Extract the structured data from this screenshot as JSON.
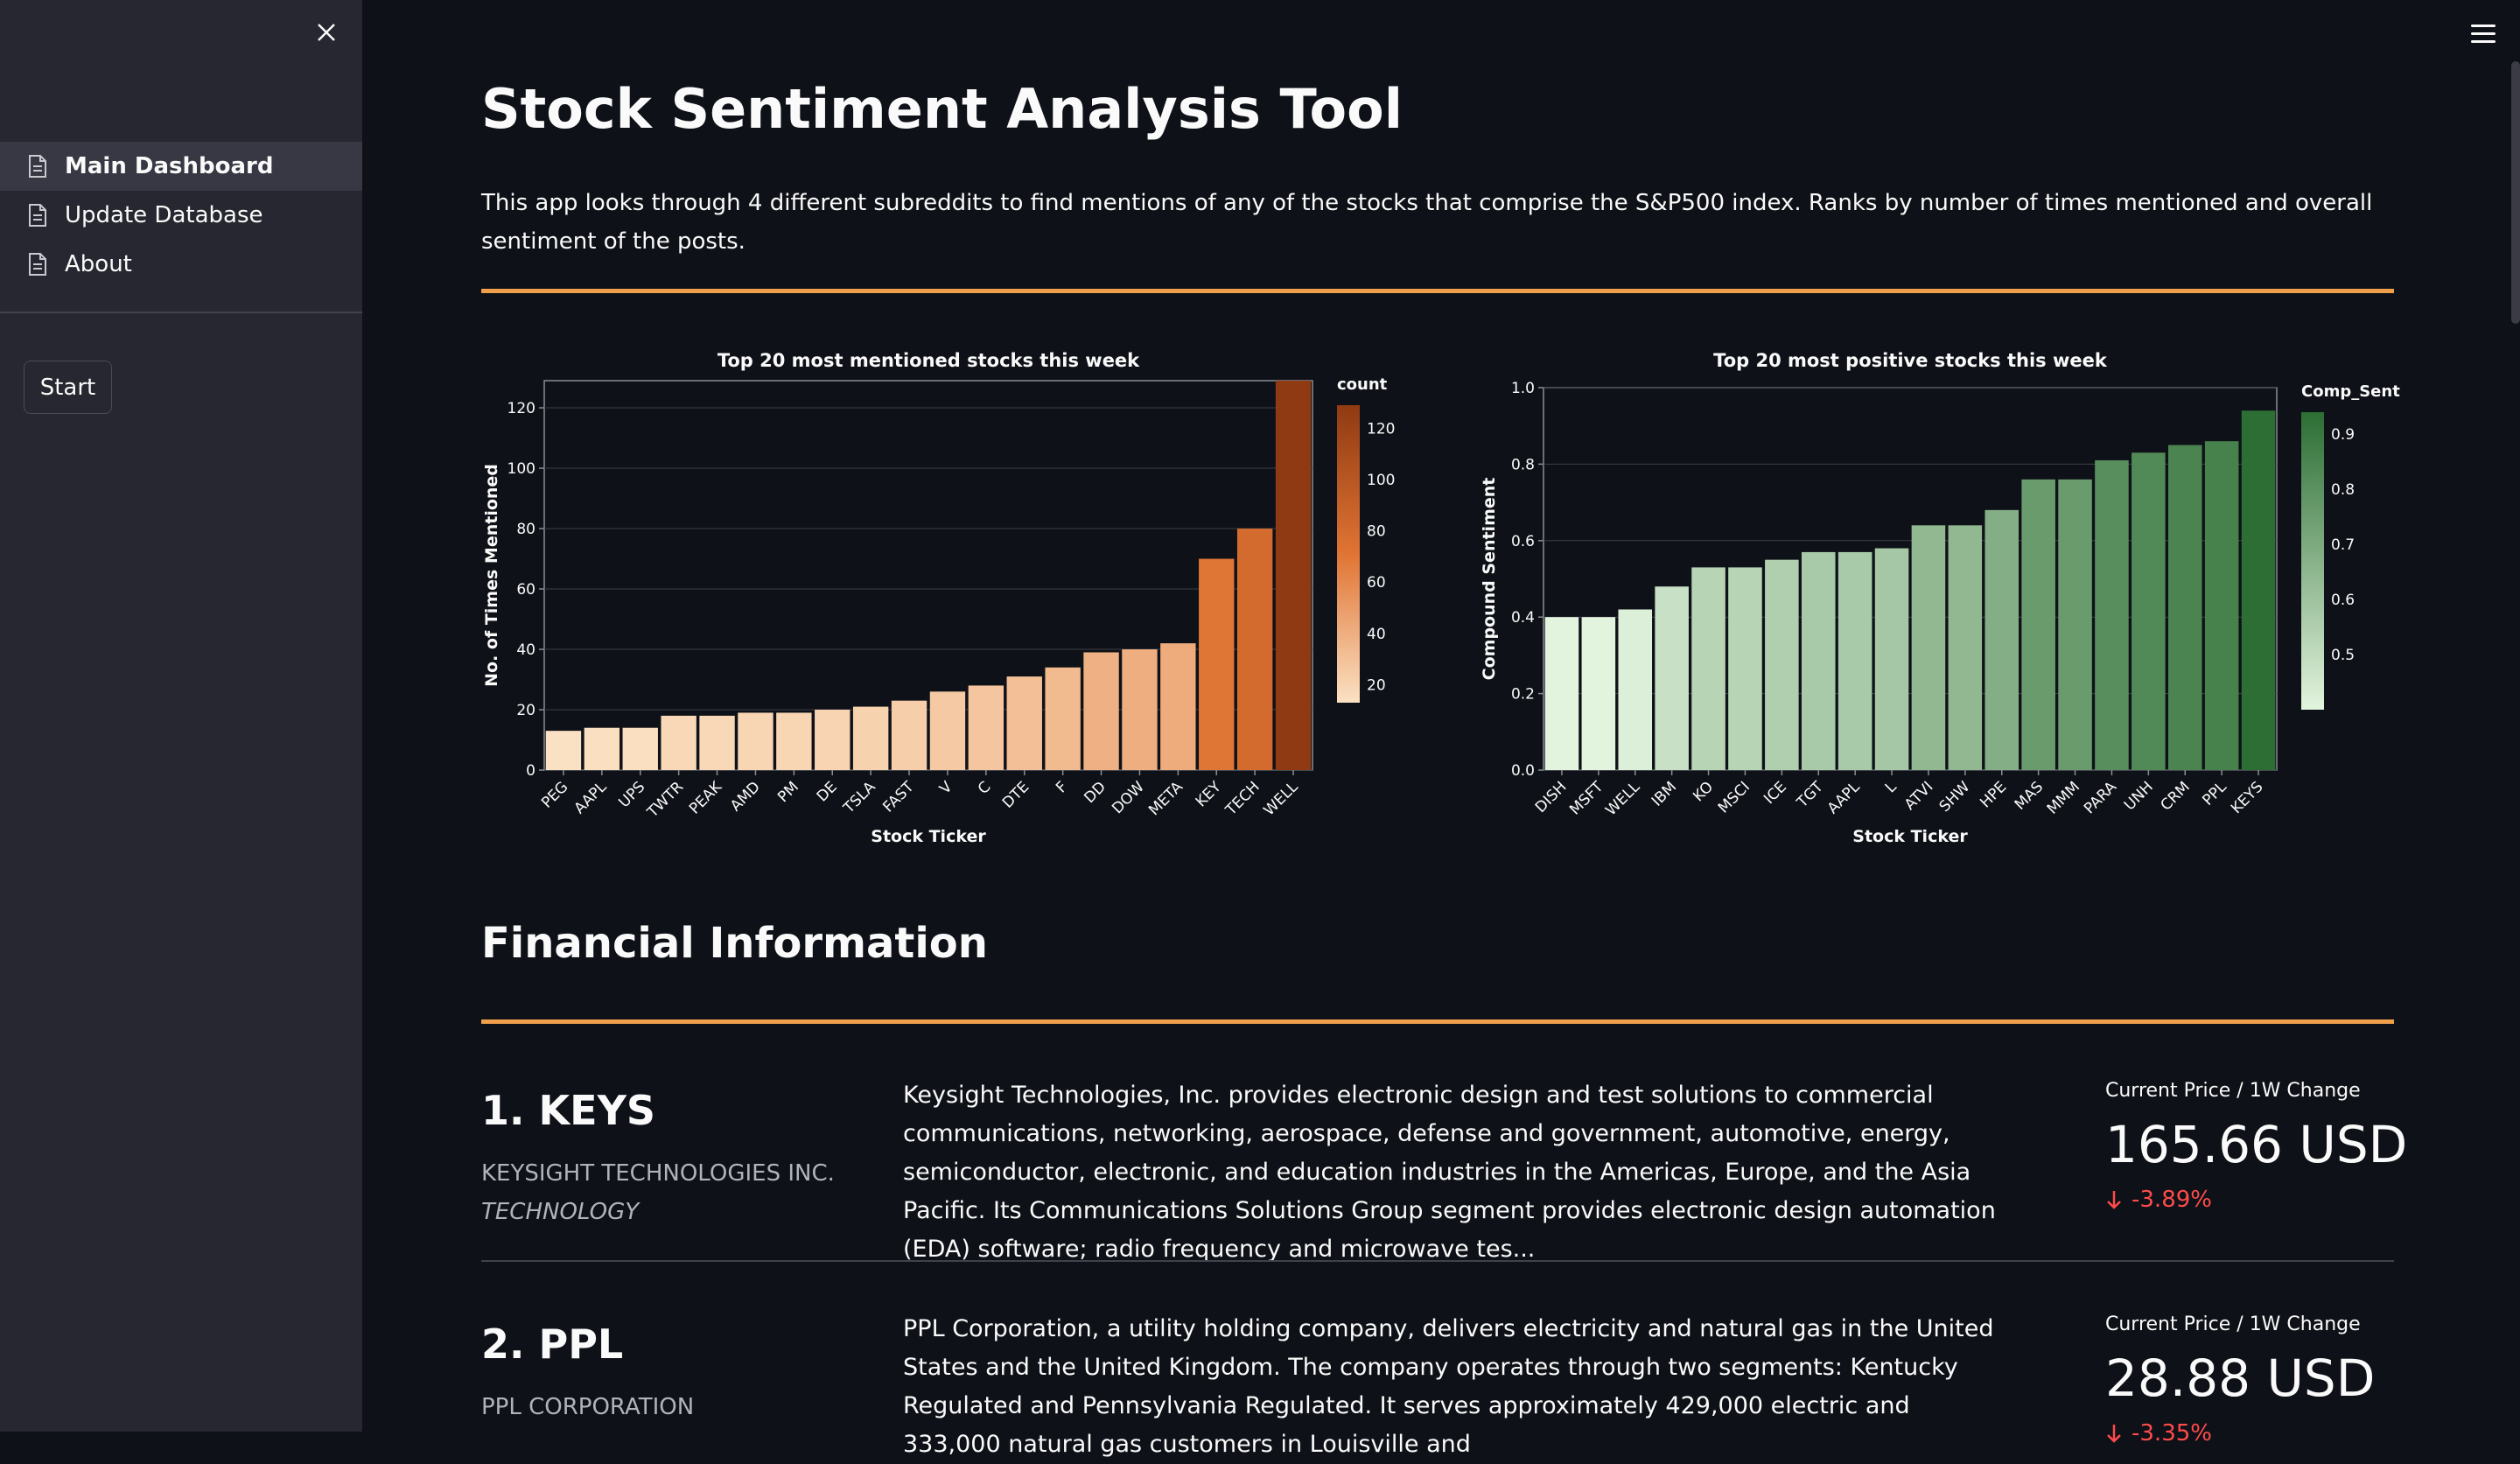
{
  "sidebar": {
    "items": [
      {
        "label": "Main Dashboard",
        "active": true
      },
      {
        "label": "Update Database",
        "active": false
      },
      {
        "label": "About",
        "active": false
      }
    ],
    "start_label": "Start"
  },
  "main": {
    "title": "Stock Sentiment Analysis Tool",
    "intro": "This app looks through 4 different subreddits to find mentions of any of the stocks that comprise the S&P500 index. Ranks by number of times mentioned and overall sentiment of the posts.",
    "financial_title": "Financial Information",
    "accent_color": "#f0a04b"
  },
  "chart_data": [
    {
      "type": "bar",
      "title": "Top 20 most mentioned stocks this week",
      "xlabel": "Stock Ticker",
      "ylabel": "No. of Times Mentioned",
      "categories": [
        "PEG",
        "AAPL",
        "UPS",
        "TWTR",
        "PEAK",
        "AMD",
        "PM",
        "DE",
        "TSLA",
        "FAST",
        "V",
        "C",
        "DTE",
        "F",
        "DD",
        "DOW",
        "META",
        "KEY",
        "TECH",
        "WELL"
      ],
      "values": [
        13,
        14,
        14,
        18,
        18,
        19,
        19,
        20,
        21,
        23,
        26,
        28,
        31,
        34,
        39,
        40,
        42,
        70,
        80,
        129
      ],
      "ylim": [
        0,
        129
      ],
      "yticks": [
        0,
        20,
        40,
        60,
        80,
        100,
        120
      ],
      "legend_title": "count",
      "legend_ticks": [
        120,
        100,
        80,
        60,
        40,
        20
      ],
      "color_low": "#fbe1c3",
      "color_mid": "#e07434",
      "color_high": "#8f3a12"
    },
    {
      "type": "bar",
      "title": "Top 20 most positive stocks this week",
      "xlabel": "Stock Ticker",
      "ylabel": "Compound Sentiment",
      "categories": [
        "DISH",
        "MSFT",
        "WELL",
        "IBM",
        "KO",
        "MSCI",
        "ICE",
        "TGT",
        "AAPL",
        "L",
        "ATVI",
        "SHW",
        "HPE",
        "MAS",
        "MMM",
        "PARA",
        "UNH",
        "CRM",
        "PPL",
        "KEYS"
      ],
      "values": [
        0.4,
        0.4,
        0.42,
        0.48,
        0.53,
        0.53,
        0.55,
        0.57,
        0.57,
        0.58,
        0.64,
        0.64,
        0.68,
        0.76,
        0.76,
        0.81,
        0.83,
        0.85,
        0.86,
        0.94
      ],
      "ylim": [
        0,
        1.0
      ],
      "yticks": [
        0.0,
        0.2,
        0.4,
        0.6,
        0.8,
        1.0
      ],
      "legend_title": "Comp_Sent",
      "legend_ticks": [
        0.9,
        0.8,
        0.7,
        0.6,
        0.5
      ],
      "color_low": "#e3f4de",
      "color_high": "#2c6e34"
    }
  ],
  "stocks": [
    {
      "rank_title": "1. KEYS",
      "name": "KEYSIGHT TECHNOLOGIES INC.",
      "sector": "TECHNOLOGY",
      "description": "Keysight Technologies, Inc. provides electronic design and test solutions to commercial communications, networking, aerospace, defense and government, automotive, energy, semiconductor, electronic, and education industries in the Americas, Europe, and the Asia Pacific. Its Communications Solutions Group segment provides electronic design automation (EDA) software; radio frequency and microwave tes...",
      "metric_label": "Current Price / 1W Change",
      "price": "165.66 USD",
      "change": "-3.89%"
    },
    {
      "rank_title": "2. PPL",
      "name": "PPL CORPORATION",
      "sector": "",
      "description": "PPL Corporation, a utility holding company, delivers electricity and natural gas in the United States and the United Kingdom. The company operates through two segments: Kentucky Regulated and Pennsylvania Regulated. It serves approximately 429,000 electric and 333,000 natural gas customers in Louisville and",
      "metric_label": "Current Price / 1W Change",
      "price": "28.88 USD",
      "change": "-3.35%"
    }
  ]
}
